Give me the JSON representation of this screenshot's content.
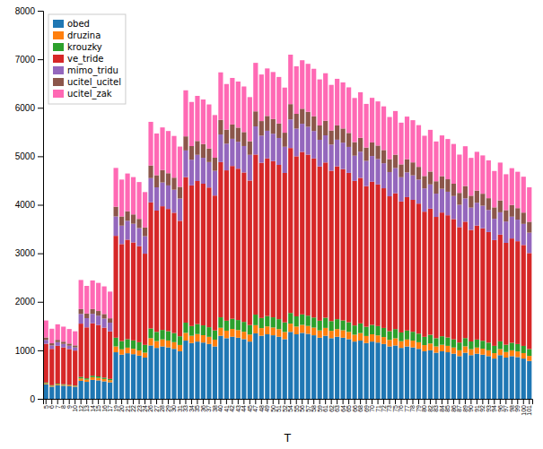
{
  "chart_data": {
    "type": "bar",
    "stacked": true,
    "grid": false,
    "legend": "upper left",
    "x_label": "T",
    "ylim": [
      0,
      8000
    ],
    "yticks": [
      0,
      1000,
      2000,
      3000,
      4000,
      5000,
      6000,
      7000,
      8000
    ],
    "categories": [
      5,
      6,
      7,
      8,
      9,
      10,
      12,
      13,
      14,
      15,
      16,
      17,
      19,
      20,
      21,
      22,
      23,
      24,
      26,
      27,
      28,
      29,
      30,
      31,
      33,
      34,
      35,
      36,
      37,
      38,
      40,
      41,
      42,
      43,
      44,
      45,
      47,
      48,
      49,
      50,
      51,
      52,
      54,
      55,
      56,
      57,
      58,
      59,
      61,
      62,
      63,
      64,
      65,
      66,
      68,
      69,
      70,
      71,
      72,
      73,
      75,
      76,
      77,
      78,
      79,
      80,
      82,
      83,
      84,
      85,
      86,
      87,
      89,
      90,
      91,
      92,
      93,
      94,
      96,
      97,
      98,
      99,
      100,
      101
    ],
    "series": [
      {
        "name": "obed",
        "color": "#1f77b4",
        "values": [
          300,
          250,
          280,
          270,
          260,
          250,
          370,
          350,
          390,
          380,
          360,
          340,
          960,
          910,
          940,
          920,
          890,
          850,
          1100,
          1050,
          1080,
          1060,
          1030,
          980,
          1200,
          1150,
          1180,
          1160,
          1130,
          1080,
          1300,
          1250,
          1280,
          1260,
          1230,
          1180,
          1350,
          1300,
          1330,
          1310,
          1280,
          1230,
          1380,
          1330,
          1360,
          1340,
          1310,
          1260,
          1300,
          1250,
          1280,
          1260,
          1230,
          1180,
          1200,
          1150,
          1180,
          1160,
          1130,
          1080,
          1100,
          1050,
          1080,
          1060,
          1030,
          980,
          1000,
          950,
          980,
          960,
          930,
          880,
          950,
          900,
          930,
          910,
          880,
          830,
          900,
          850,
          880,
          860,
          830,
          780
        ]
      },
      {
        "name": "druzina",
        "color": "#ff7f0e",
        "values": [
          20,
          18,
          19,
          17,
          16,
          15,
          50,
          45,
          55,
          52,
          48,
          44,
          120,
          110,
          115,
          112,
          108,
          102,
          150,
          140,
          145,
          142,
          138,
          130,
          160,
          150,
          155,
          152,
          148,
          140,
          165,
          155,
          160,
          157,
          153,
          145,
          168,
          158,
          163,
          160,
          156,
          148,
          170,
          160,
          165,
          162,
          158,
          150,
          162,
          152,
          157,
          154,
          150,
          142,
          155,
          145,
          150,
          147,
          143,
          135,
          148,
          138,
          143,
          140,
          136,
          128,
          140,
          130,
          135,
          132,
          128,
          120,
          132,
          122,
          127,
          124,
          120,
          112,
          125,
          115,
          120,
          117,
          113,
          105
        ]
      },
      {
        "name": "krouzky",
        "color": "#2ca02c",
        "values": [
          15,
          12,
          14,
          13,
          11,
          10,
          30,
          28,
          32,
          30,
          28,
          26,
          180,
          170,
          175,
          172,
          168,
          160,
          200,
          190,
          195,
          192,
          188,
          180,
          210,
          200,
          205,
          202,
          198,
          190,
          215,
          205,
          210,
          207,
          203,
          195,
          218,
          208,
          213,
          210,
          206,
          198,
          220,
          210,
          215,
          212,
          208,
          200,
          210,
          200,
          205,
          202,
          198,
          190,
          200,
          190,
          195,
          192,
          188,
          180,
          190,
          180,
          185,
          182,
          178,
          170,
          180,
          170,
          175,
          172,
          168,
          160,
          170,
          160,
          165,
          162,
          158,
          150,
          160,
          150,
          155,
          152,
          148,
          140
        ]
      },
      {
        "name": "ve_tride",
        "color": "#d62728",
        "values": [
          800,
          750,
          780,
          760,
          740,
          720,
          1100,
          1050,
          1080,
          1060,
          1030,
          980,
          2100,
          2000,
          2050,
          2020,
          1980,
          1880,
          2600,
          2500,
          2550,
          2520,
          2480,
          2380,
          3000,
          2900,
          2950,
          2920,
          2880,
          2780,
          3200,
          3100,
          3150,
          3120,
          3080,
          2980,
          3300,
          3200,
          3250,
          3220,
          3180,
          3080,
          3400,
          3300,
          3350,
          3320,
          3280,
          3180,
          3200,
          3100,
          3150,
          3120,
          3080,
          2980,
          3000,
          2900,
          2950,
          2920,
          2880,
          2780,
          2800,
          2700,
          2750,
          2720,
          2680,
          2580,
          2600,
          2500,
          2550,
          2520,
          2480,
          2380,
          2400,
          2300,
          2350,
          2320,
          2280,
          2180,
          2200,
          2100,
          2150,
          2120,
          2080,
          1980
        ]
      },
      {
        "name": "mimo_tridu",
        "color": "#9467bd",
        "values": [
          80,
          70,
          75,
          72,
          68,
          65,
          200,
          190,
          195,
          192,
          188,
          180,
          400,
          380,
          390,
          385,
          375,
          360,
          500,
          480,
          490,
          485,
          475,
          460,
          550,
          530,
          540,
          535,
          525,
          510,
          570,
          550,
          560,
          555,
          545,
          530,
          580,
          560,
          570,
          565,
          555,
          540,
          590,
          570,
          580,
          575,
          565,
          550,
          560,
          540,
          550,
          545,
          535,
          520,
          540,
          520,
          530,
          525,
          515,
          500,
          520,
          500,
          510,
          505,
          495,
          480,
          500,
          480,
          490,
          485,
          475,
          460,
          480,
          460,
          470,
          465,
          455,
          440,
          460,
          440,
          450,
          445,
          435,
          420
        ]
      },
      {
        "name": "ucitel_ucitel",
        "color": "#8c564b",
        "values": [
          50,
          45,
          48,
          46,
          44,
          42,
          100,
          95,
          98,
          96,
          94,
          90,
          200,
          190,
          195,
          192,
          188,
          180,
          260,
          250,
          255,
          252,
          248,
          240,
          290,
          280,
          285,
          282,
          278,
          270,
          300,
          290,
          295,
          292,
          288,
          280,
          310,
          300,
          305,
          302,
          298,
          290,
          315,
          305,
          310,
          307,
          303,
          295,
          300,
          290,
          295,
          292,
          288,
          280,
          285,
          275,
          280,
          277,
          273,
          265,
          275,
          265,
          270,
          267,
          263,
          255,
          265,
          255,
          260,
          257,
          253,
          245,
          255,
          245,
          250,
          247,
          243,
          235,
          245,
          235,
          240,
          237,
          233,
          225
        ]
      },
      {
        "name": "ucitel_zak",
        "color": "#ff69b4",
        "values": [
          350,
          300,
          320,
          310,
          300,
          290,
          600,
          570,
          590,
          580,
          570,
          550,
          800,
          760,
          780,
          770,
          760,
          730,
          900,
          860,
          880,
          870,
          860,
          830,
          950,
          910,
          930,
          920,
          910,
          880,
          980,
          940,
          960,
          950,
          940,
          910,
          1000,
          960,
          980,
          970,
          960,
          930,
          1020,
          980,
          1000,
          990,
          980,
          950,
          980,
          940,
          960,
          950,
          940,
          910,
          940,
          900,
          920,
          910,
          900,
          870,
          900,
          860,
          880,
          870,
          860,
          830,
          860,
          820,
          840,
          830,
          820,
          790,
          820,
          780,
          800,
          790,
          780,
          750,
          780,
          740,
          760,
          750,
          740,
          710
        ]
      }
    ]
  }
}
